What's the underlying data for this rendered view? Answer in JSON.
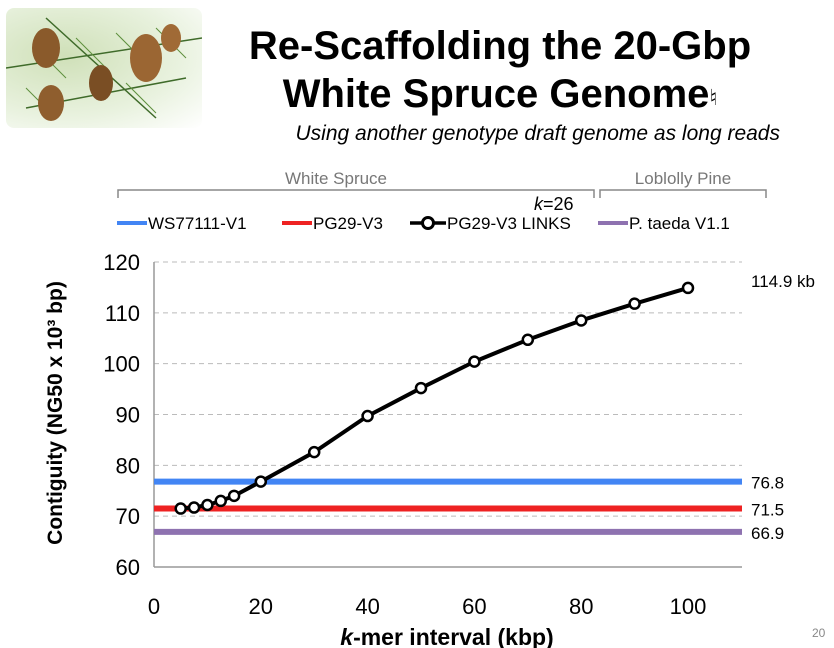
{
  "slide": {
    "title_line1": "Re-Scaffolding the 20-Gbp",
    "title_line2": "White Spruce Genome",
    "title_mark": "♮",
    "subtitle": "Using another genotype draft genome as long reads",
    "slide_number": "20"
  },
  "groups": [
    {
      "label": "White Spruce"
    },
    {
      "label": "Loblolly Pine"
    }
  ],
  "kmer_note": {
    "k": "k",
    "value": "=26"
  },
  "chart_data": {
    "type": "line",
    "xlabel_italic": "k",
    "xlabel_rest": "-mer interval (kbp)",
    "ylabel": "Contiguity (NG50 x 10³ bp)",
    "xlim": [
      0,
      110
    ],
    "ylim": [
      60,
      120
    ],
    "xticks": [
      0,
      20,
      40,
      60,
      80,
      100
    ],
    "yticks": [
      60,
      70,
      80,
      90,
      100,
      110,
      120
    ],
    "grid": "horizontal dashed",
    "legend_position": "top",
    "series": [
      {
        "name": "WS77111-V1",
        "style": "hline",
        "value": 76.8,
        "label": "76.8",
        "color": "#4285f4"
      },
      {
        "name": "PG29-V3",
        "style": "hline",
        "value": 71.5,
        "label": "71.5",
        "color": "#ee2222"
      },
      {
        "name": "PG29-V3 LINKS",
        "style": "line-markers",
        "color": "#000000",
        "x": [
          5,
          7.5,
          10,
          12.5,
          15,
          20,
          30,
          40,
          50,
          60,
          70,
          80,
          90,
          100
        ],
        "y": [
          71.5,
          71.7,
          72.2,
          73.0,
          74.0,
          76.8,
          82.6,
          89.7,
          95.2,
          100.4,
          104.7,
          108.5,
          111.8,
          114.9
        ],
        "end_label": "114.9 kb"
      },
      {
        "name": "P. taeda V1.1",
        "style": "hline",
        "value": 66.9,
        "label": "66.9",
        "color": "#8e72b0"
      }
    ]
  }
}
